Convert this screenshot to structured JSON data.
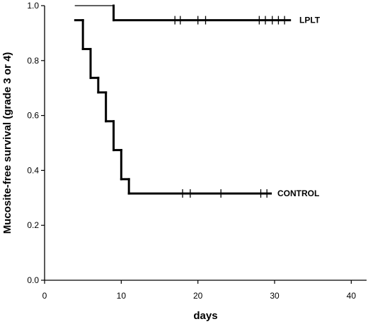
{
  "chart_data": {
    "type": "line",
    "xlabel": "days",
    "ylabel": "Mucosite-free survival (grade 3 or 4)",
    "xlim": [
      0,
      42
    ],
    "ylim": [
      0,
      1.0
    ],
    "x_ticks": [
      0,
      10,
      20,
      30,
      40
    ],
    "y_ticks": [
      0.0,
      0.2,
      0.4,
      0.6,
      0.8,
      1.0
    ],
    "x_tick_labels": [
      "0",
      "10",
      "20",
      "30",
      "40"
    ],
    "y_tick_labels": [
      "0.0",
      "0.2",
      "0.4",
      "0.6",
      "0.8",
      "1.0"
    ],
    "grid": false,
    "series": [
      {
        "name": "LPLT",
        "line_weight": "thin-to-thick",
        "steps": [
          [
            4,
            1.0
          ],
          [
            9,
            0.947
          ],
          [
            32,
            0.947
          ]
        ],
        "censored": [
          17,
          17.7,
          20,
          21,
          28,
          28.8,
          29.7,
          30.5,
          31.3
        ]
      },
      {
        "name": "CONTROL",
        "line_weight": "thick",
        "steps": [
          [
            4,
            0.947
          ],
          [
            5,
            0.842
          ],
          [
            6,
            0.737
          ],
          [
            7,
            0.684
          ],
          [
            8,
            0.579
          ],
          [
            9,
            0.474
          ],
          [
            10,
            0.368
          ],
          [
            11,
            0.316
          ],
          [
            29.5,
            0.316
          ]
        ],
        "censored": [
          18,
          19,
          23,
          28.2,
          29
        ]
      }
    ]
  }
}
